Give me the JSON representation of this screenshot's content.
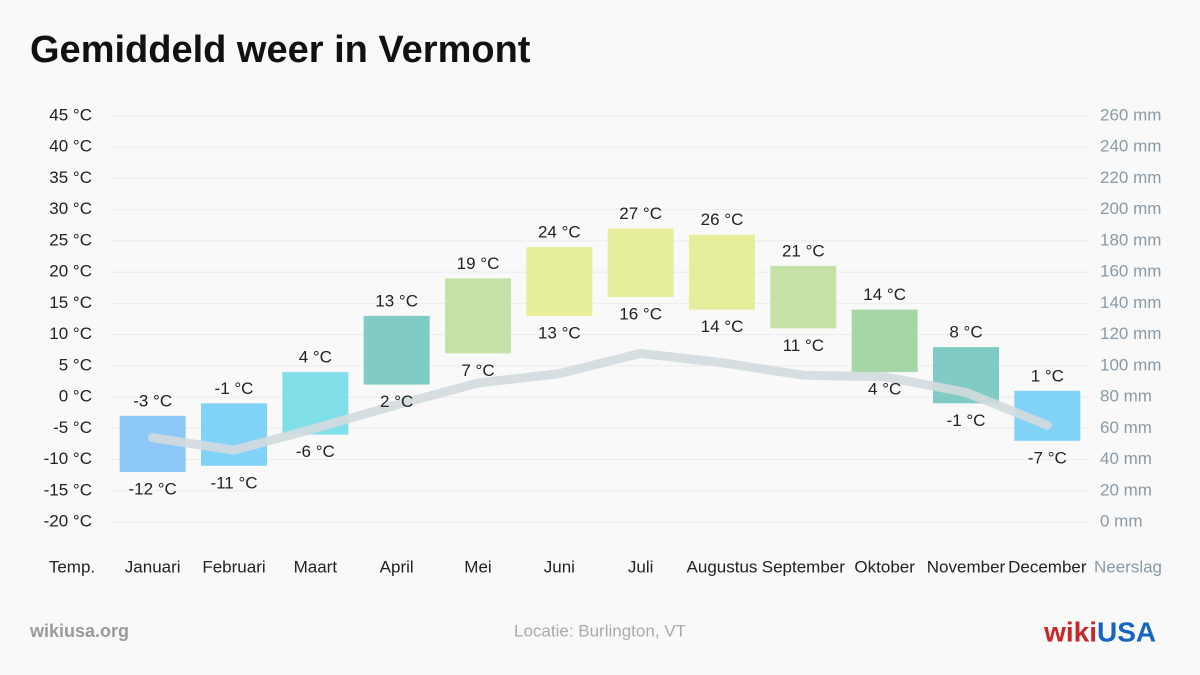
{
  "chart_data": {
    "type": "range-bar",
    "title": "Gemiddeld weer in Vermont",
    "y_label": "Temp.",
    "y2_label": "Neerslag",
    "categories": [
      "Januari",
      "Februari",
      "Maart",
      "April",
      "Mei",
      "Juni",
      "Juli",
      "Augustus",
      "September",
      "Oktober",
      "November",
      "December"
    ],
    "high": {
      "values": [
        -3,
        -1,
        4,
        13,
        19,
        24,
        27,
        26,
        21,
        14,
        8,
        1
      ],
      "value_labels": [
        "-3 °C",
        "-1 °C",
        "4 °C",
        "13 °C",
        "19 °C",
        "24 °C",
        "27 °C",
        "26 °C",
        "21 °C",
        "14 °C",
        "8 °C",
        "1 °C"
      ]
    },
    "low": {
      "values": [
        -12,
        -11,
        -6,
        2,
        7,
        13,
        16,
        14,
        11,
        4,
        -1,
        -7
      ],
      "value_labels": [
        "-12 °C",
        "-11 °C",
        "-6 °C",
        "2 °C",
        "7 °C",
        "13 °C",
        "16 °C",
        "14 °C",
        "11 °C",
        "4 °C",
        "-1 °C",
        "-7 °C"
      ]
    },
    "colors": [
      "#8ec8f6",
      "#80d2f6",
      "#80dfe9",
      "#80cbc4",
      "#c5e1a5",
      "#e6ee9c",
      "#e6ee9c",
      "#e6ee9c",
      "#c5e1a5",
      "#a5d6a7",
      "#80cbc4",
      "#80d2f6"
    ],
    "precipitation": {
      "axis": "y2",
      "color": "#d3dade",
      "values": [
        54,
        46,
        60,
        75,
        89,
        95,
        108,
        102,
        94,
        93,
        83,
        62
      ]
    },
    "ylim": [
      -20,
      45
    ],
    "yticks": [
      {
        "value": -20,
        "label": "-20 °C"
      },
      {
        "value": -15,
        "label": "-15 °C"
      },
      {
        "value": -10,
        "label": "-10 °C"
      },
      {
        "value": -5,
        "label": "-5 °C"
      },
      {
        "value": 0,
        "label": "0 °C"
      },
      {
        "value": 5,
        "label": "5 °C"
      },
      {
        "value": 10,
        "label": "10 °C"
      },
      {
        "value": 15,
        "label": "15 °C"
      },
      {
        "value": 20,
        "label": "20 °C"
      },
      {
        "value": 25,
        "label": "25 °C"
      },
      {
        "value": 30,
        "label": "30 °C"
      },
      {
        "value": 35,
        "label": "35 °C"
      },
      {
        "value": 40,
        "label": "40 °C"
      },
      {
        "value": 45,
        "label": "45 °C"
      }
    ],
    "y2lim": [
      0,
      260
    ],
    "y2ticks": [
      {
        "value": 0,
        "label": "0 mm"
      },
      {
        "value": 20,
        "label": "20 mm"
      },
      {
        "value": 40,
        "label": "40 mm"
      },
      {
        "value": 60,
        "label": "60 mm"
      },
      {
        "value": 80,
        "label": "80 mm"
      },
      {
        "value": 100,
        "label": "100 mm"
      },
      {
        "value": 120,
        "label": "120 mm"
      },
      {
        "value": 140,
        "label": "140 mm"
      },
      {
        "value": 160,
        "label": "160 mm"
      },
      {
        "value": 180,
        "label": "180 mm"
      },
      {
        "value": 200,
        "label": "200 mm"
      },
      {
        "value": 220,
        "label": "220 mm"
      },
      {
        "value": 240,
        "label": "240 mm"
      },
      {
        "value": 260,
        "label": "260 mm"
      }
    ],
    "grid": true,
    "source": "wikiusa.org",
    "location": "Locatie: Burlington, VT",
    "logo_prefix": "wiki",
    "logo_suffix": "USA"
  }
}
